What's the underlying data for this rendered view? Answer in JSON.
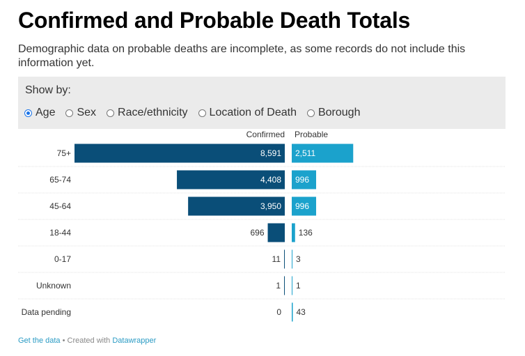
{
  "title": "Confirmed and Probable Death Totals",
  "subtitle": "Demographic data on probable deaths are incomplete, as some records do not include this information yet.",
  "controls": {
    "label": "Show by:",
    "options": [
      "Age",
      "Sex",
      "Race/ethnicity",
      "Location of Death",
      "Borough"
    ],
    "selected": "Age"
  },
  "chart_data": {
    "type": "bar",
    "categories": [
      "75+",
      "65-74",
      "45-64",
      "18-44",
      "0-17",
      "Unknown",
      "Data pending"
    ],
    "series": [
      {
        "name": "Confirmed",
        "values": [
          8591,
          4408,
          3950,
          696,
          11,
          1,
          0
        ],
        "color": "#0a4e78"
      },
      {
        "name": "Probable",
        "values": [
          2511,
          996,
          996,
          136,
          3,
          1,
          43
        ],
        "color": "#1ba2cc"
      }
    ],
    "value_labels": {
      "Confirmed": [
        "8,591",
        "4,408",
        "3,950",
        "696",
        "11",
        "1",
        "0"
      ],
      "Probable": [
        "2,511",
        "996",
        "996",
        "136",
        "3",
        "1",
        "43"
      ]
    }
  },
  "footer": {
    "get_data": "Get the data",
    "separator": " • Created with ",
    "tool": "Datawrapper"
  }
}
